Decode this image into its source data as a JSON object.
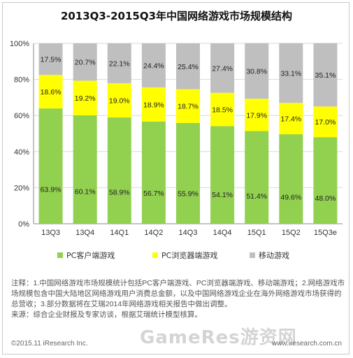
{
  "title": "2013Q3-2015Q3年中国网络游戏市场规模结构",
  "chart_data": {
    "type": "bar",
    "stacked": true,
    "title": "2013Q3-2015Q3年中国网络游戏市场规模结构",
    "categories": [
      "13Q3",
      "13Q4",
      "14Q1",
      "14Q2",
      "14Q3",
      "14Q4",
      "15Q1",
      "15Q2",
      "15Q3e"
    ],
    "yticks": [
      "0%",
      "20%",
      "40%",
      "60%",
      "80%",
      "100%"
    ],
    "ylim": [
      0,
      100
    ],
    "series": [
      {
        "name": "PC客户端游戏",
        "color": "#92d050",
        "values": [
          63.9,
          60.1,
          58.9,
          56.7,
          55.9,
          54.1,
          51.4,
          49.6,
          48.0
        ]
      },
      {
        "name": "PC浏览器端游戏",
        "color": "#ffff00",
        "values": [
          18.6,
          19.2,
          19.0,
          18.9,
          18.7,
          18.5,
          17.9,
          17.4,
          17.0
        ]
      },
      {
        "name": "移动游戏",
        "color": "#bfbfbf",
        "values": [
          17.5,
          20.7,
          22.1,
          24.4,
          25.4,
          27.4,
          30.8,
          33.1,
          35.1
        ]
      }
    ],
    "value_suffix": "%",
    "legend_position": "bottom",
    "grid": true
  },
  "notes": {
    "line1": "注释：1.中国网络游戏市场规模统计包括PC客户端游戏、PC浏览器端游戏、移动端游戏；2.网络游戏市场规模包含中国大陆地区网络游戏用户消费总金额，以及中国网络游戏企业在海外网络游戏市场获得的总营收；3.部分数据将在艾瑞2014年网络游戏相关报告中做出调整。",
    "line2": "来源：综合企业财报及专家访谈，根据艾瑞统计模型核算。"
  },
  "footer": {
    "copyright": "©2015.11 iResearch Inc.",
    "url": "www.iresearch.com.cn",
    "watermark": "GameRes游资网"
  }
}
